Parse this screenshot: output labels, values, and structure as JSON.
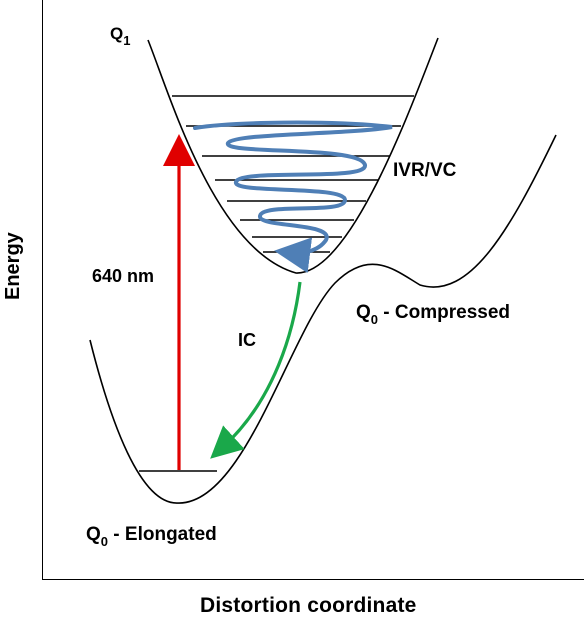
{
  "axes": {
    "x_label": "Distortion coordinate",
    "y_label": "Energy"
  },
  "states": {
    "q1": {
      "base": "Q",
      "sub": "1"
    },
    "q0_compressed": {
      "base": "Q",
      "sub": "0",
      "suffix": " - Compressed"
    },
    "q0_elongated": {
      "base": "Q",
      "sub": "0",
      "suffix": " - Elongated"
    }
  },
  "transitions": {
    "excitation": {
      "label": "640 nm",
      "color": "#e00000"
    },
    "ivr": {
      "label": "IVR/VC",
      "color": "#4f7fb6"
    },
    "ic": {
      "label": "IC",
      "color": "#1aa84a"
    }
  }
}
